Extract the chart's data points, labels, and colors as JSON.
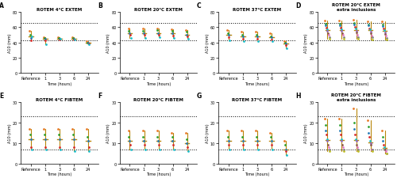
{
  "panels": [
    {
      "label": "A",
      "title": "ROTEM 4°C EXTEM",
      "type": "EXTEM",
      "ylim": [
        0,
        80
      ],
      "yticks": [
        0,
        20,
        40,
        60,
        80
      ],
      "ref_low": 43,
      "ref_high": 65,
      "x_labels": [
        "Reference",
        "1",
        "3",
        "6",
        "24"
      ],
      "n_volunteers": 5,
      "data": {
        "Reference": [
          55,
          50,
          46,
          43,
          48
        ],
        "1": [
          47,
          46,
          45,
          43,
          37
        ],
        "3": [
          47,
          46,
          45,
          44,
          45
        ],
        "6": [
          47,
          46,
          45,
          44,
          44
        ],
        "24": [
          42,
          40,
          39,
          38,
          37
        ]
      }
    },
    {
      "label": "B",
      "title": "ROTEM 20°C EXTEM",
      "type": "EXTEM",
      "ylim": [
        0,
        80
      ],
      "yticks": [
        0,
        20,
        40,
        60,
        80
      ],
      "ref_low": 43,
      "ref_high": 65,
      "x_labels": [
        "Reference",
        "1",
        "3",
        "6",
        "24"
      ],
      "n_volunteers": 5,
      "data": {
        "Reference": [
          58,
          55,
          52,
          50,
          46
        ],
        "1": [
          58,
          55,
          52,
          50,
          46
        ],
        "3": [
          58,
          56,
          52,
          50,
          47
        ],
        "6": [
          57,
          55,
          52,
          49,
          46
        ],
        "24": [
          56,
          54,
          50,
          48,
          45
        ]
      }
    },
    {
      "label": "C",
      "title": "ROTEM 37°C EXTEM",
      "type": "EXTEM",
      "ylim": [
        0,
        80
      ],
      "yticks": [
        0,
        20,
        40,
        60,
        80
      ],
      "ref_low": 43,
      "ref_high": 65,
      "x_labels": [
        "Reference",
        "1",
        "3",
        "6",
        "24"
      ],
      "n_volunteers": 5,
      "data": {
        "Reference": [
          56,
          52,
          50,
          47,
          43
        ],
        "1": [
          54,
          50,
          48,
          45,
          42
        ],
        "3": [
          54,
          50,
          48,
          45,
          42
        ],
        "6": [
          52,
          48,
          47,
          44,
          42
        ],
        "24": [
          42,
          40,
          38,
          36,
          32
        ]
      }
    },
    {
      "label": "D",
      "title": "ROTEM 20°C EXTEM\nextra inclusions",
      "type": "EXTEM",
      "ylim": [
        0,
        80
      ],
      "yticks": [
        0,
        20,
        40,
        60,
        80
      ],
      "ref_low": 43,
      "ref_high": 65,
      "x_labels": [
        "Reference",
        "1",
        "3",
        "6",
        "24"
      ],
      "n_volunteers": 10,
      "data": {
        "Reference": [
          68,
          64,
          62,
          59,
          57,
          55,
          52,
          50,
          47,
          45
        ],
        "1": [
          68,
          64,
          62,
          59,
          57,
          55,
          52,
          50,
          47,
          45
        ],
        "3": [
          69,
          65,
          63,
          60,
          58,
          55,
          53,
          50,
          47,
          45
        ],
        "6": [
          67,
          63,
          62,
          58,
          57,
          54,
          52,
          49,
          47,
          44
        ],
        "24": [
          67,
          63,
          61,
          58,
          56,
          53,
          51,
          49,
          46,
          44
        ]
      }
    },
    {
      "label": "E",
      "title": "ROTEM 4°C FIBTEM",
      "type": "FIBTEM",
      "ylim": [
        0,
        30
      ],
      "yticks": [
        0,
        10,
        20,
        30
      ],
      "ref_low": 7,
      "ref_high": 23,
      "x_labels": [
        "Reference",
        "1",
        "3",
        "6",
        "24"
      ],
      "n_volunteers": 5,
      "data": {
        "Reference": [
          17,
          14,
          12,
          8,
          7
        ],
        "1": [
          17,
          14,
          12,
          8,
          7
        ],
        "3": [
          17,
          14,
          12,
          8,
          7
        ],
        "6": [
          17,
          14,
          12,
          8,
          6
        ],
        "24": [
          17,
          13,
          11,
          8,
          6
        ]
      }
    },
    {
      "label": "F",
      "title": "ROTEM 20°C FIBTEM",
      "type": "FIBTEM",
      "ylim": [
        0,
        30
      ],
      "yticks": [
        0,
        10,
        20,
        30
      ],
      "ref_low": 7,
      "ref_high": 23,
      "x_labels": [
        "Reference",
        "1",
        "3",
        "6",
        "24"
      ],
      "n_volunteers": 5,
      "data": {
        "Reference": [
          16,
          13,
          11,
          9,
          7
        ],
        "1": [
          16,
          13,
          11,
          9,
          7
        ],
        "3": [
          16,
          13,
          11,
          9,
          7
        ],
        "6": [
          15,
          13,
          11,
          9,
          7
        ],
        "24": [
          15,
          12,
          10,
          8,
          6
        ]
      }
    },
    {
      "label": "G",
      "title": "ROTEM 37°C FIBTEM",
      "type": "FIBTEM",
      "ylim": [
        0,
        30
      ],
      "yticks": [
        0,
        10,
        20,
        30
      ],
      "ref_low": 7,
      "ref_high": 23,
      "x_labels": [
        "Reference",
        "1",
        "3",
        "6",
        "24"
      ],
      "n_volunteers": 5,
      "data": {
        "Reference": [
          16,
          13,
          11,
          9,
          7
        ],
        "1": [
          16,
          13,
          11,
          9,
          7
        ],
        "3": [
          16,
          13,
          11,
          9,
          7
        ],
        "6": [
          15,
          13,
          11,
          9,
          7
        ],
        "24": [
          11,
          9,
          7,
          6,
          4
        ]
      }
    },
    {
      "label": "H",
      "title": "ROTEM 20°C FIBTEM\nextra inclusions",
      "type": "FIBTEM",
      "ylim": [
        0,
        30
      ],
      "yticks": [
        0,
        10,
        20,
        30
      ],
      "ref_low": 7,
      "ref_high": 23,
      "x_labels": [
        "Reference",
        "1",
        "3",
        "6",
        "24"
      ],
      "n_volunteers": 10,
      "data": {
        "Reference": [
          22,
          19,
          16,
          14,
          12,
          11,
          9,
          8,
          7,
          6
        ],
        "1": [
          22,
          19,
          16,
          14,
          12,
          11,
          9,
          8,
          7,
          6
        ],
        "3": [
          27,
          20,
          17,
          14,
          12,
          11,
          9,
          8,
          7,
          6
        ],
        "6": [
          21,
          18,
          15,
          13,
          11,
          10,
          9,
          7,
          7,
          6
        ],
        "24": [
          16,
          13,
          11,
          9,
          8,
          7,
          7,
          6,
          5,
          5
        ]
      }
    }
  ],
  "colors_5": [
    "#e87722",
    "#2ca02c",
    "#1f77b4",
    "#d62728",
    "#17becf"
  ],
  "colors_10": [
    "#e87722",
    "#2ca02c",
    "#1f77b4",
    "#d62728",
    "#17becf",
    "#9467bd",
    "#8c564b",
    "#e377c2",
    "#7f7f7f",
    "#bcbd22"
  ],
  "median_color": "#b8860b",
  "marker_size": 2.0,
  "bg_color": "#ffffff"
}
